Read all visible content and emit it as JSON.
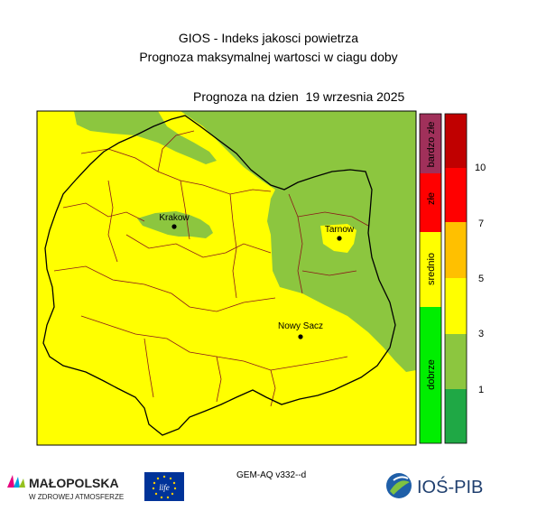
{
  "header": {
    "line1": "GIOS - Indeks jakosci powietrza",
    "line2": "Prognoza maksymalnej wartosci w ciagu doby",
    "forecast_date": "Prognoza na dzien  19 wrzesnia 2025"
  },
  "map": {
    "cities": [
      {
        "name": "Krakow"
      },
      {
        "name": "Tarnow"
      },
      {
        "name": "Nowy Sacz"
      }
    ]
  },
  "legend": {
    "categories": [
      {
        "label": "bardzo złe",
        "color": "#a0305a"
      },
      {
        "label": "złe",
        "color": "#ff0000"
      },
      {
        "label": "srednio",
        "color": "#ffff00"
      },
      {
        "label": "dobrze",
        "color": "#00ee00"
      }
    ],
    "scale": {
      "colors": [
        "#1fa845",
        "#8cc63f",
        "#ffff00",
        "#ffc000",
        "#ff0000",
        "#c00000"
      ],
      "ticks": [
        "1",
        "3",
        "5",
        "7",
        "10"
      ]
    }
  },
  "footer": {
    "version": "GEM-AQ v332--d",
    "malopolska": {
      "name": "MAŁOPOLSKA",
      "tagline": "W ZDROWEJ ATMOSFERZE"
    },
    "eu": {
      "text": "life"
    },
    "ios": {
      "name": "IOŚ-PIB"
    }
  },
  "colors": {
    "yellow": "#ffff00",
    "green": "#8cc63f"
  }
}
